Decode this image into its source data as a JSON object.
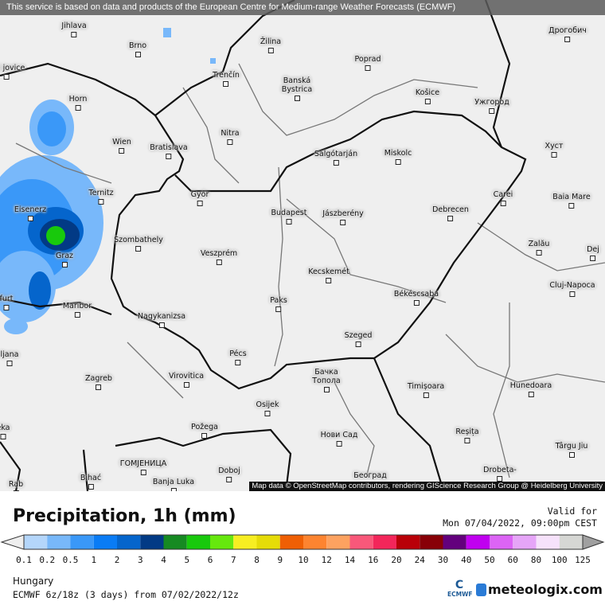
{
  "banner": "This service is based on data and products of the European Centre for Medium-range Weather Forecasts (ECMWF)",
  "attribution": "Map data © OpenStreetMap contributors, rendering GIScience Research Group @ Heidelberg University",
  "cities": [
    "Jihlava",
    "Brno",
    "Žilina",
    "Poprad",
    "Дрогобич",
    "Trenčín",
    "Banská Bystrica",
    "Košice",
    "Ужгород",
    "Horn",
    "Nitra",
    "Wien",
    "Bratislava",
    "Salgótarján",
    "Miskolc",
    "Хуст",
    "Ternitz",
    "Győr",
    "Carei",
    "Baia Mare",
    "Eisenerz",
    "Budapest",
    "Jászberény",
    "Debrecen",
    "Szombathely",
    "Zalău",
    "Graz",
    "Veszprém",
    "Dej",
    "Kecskemét",
    "Cluj-Napoca",
    "Paks",
    "Békéscsaba",
    "Maribor",
    "furt",
    "Nagykanizsa",
    "Szeged",
    "Pécs",
    "ljana",
    "Zagreb",
    "Virovitica",
    "Бачка Топола",
    "Timișoara",
    "Hunedoara",
    "Osijek",
    "Požega",
    "Нови Сад",
    "Reșița",
    "Târgu Jiu",
    "eka",
    "ГОМЈЕНИЦА",
    "Bihać",
    "Banja Luka",
    "Doboj",
    "Београд",
    "Drobeta-",
    "Rab",
    "ské jovice"
  ],
  "legend": {
    "title": "Precipitation, 1h (mm)",
    "valid_label": "Valid for",
    "valid_time": "Mon 07/04/2022, 09:00pm CEST",
    "ticks": [
      "0.1",
      "0.2",
      "0.5",
      "1",
      "2",
      "3",
      "4",
      "5",
      "6",
      "7",
      "8",
      "9",
      "10",
      "12",
      "14",
      "16",
      "20",
      "24",
      "30",
      "40",
      "50",
      "60",
      "80",
      "100",
      "125"
    ],
    "colors": [
      "#b4d6fb",
      "#78b8fa",
      "#3a98f8",
      "#0a7cf5",
      "#0565cc",
      "#023a85",
      "#168a22",
      "#18c90c",
      "#66e80e",
      "#f7ee22",
      "#e6dc08",
      "#ef5f04",
      "#fd8430",
      "#fda260",
      "#f9587a",
      "#f3265a",
      "#b90008",
      "#880007",
      "#63007d",
      "#c000f0",
      "#dc64f5",
      "#e6a5f8",
      "#f6e2fb",
      "#d6d7d4"
    ],
    "under_color": "#eeeeee",
    "over_color": "#a0a0a0"
  },
  "footer": {
    "region": "Hungary",
    "model": "ECMWF 6z/18z (3 days) from 07/02/2022/12z",
    "ecmwf_logo": "ECMWF",
    "brand": "meteologix.com"
  }
}
